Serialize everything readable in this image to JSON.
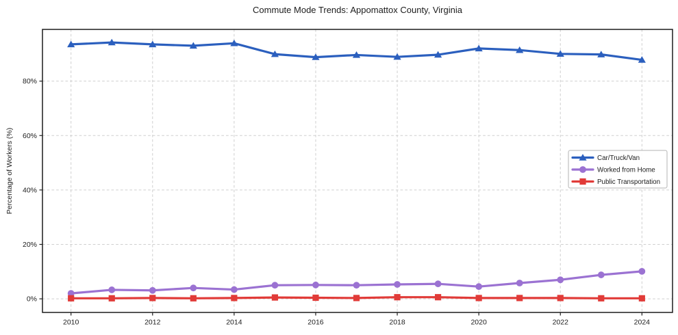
{
  "figure": {
    "title": "Commute Mode Trends: Appomattox County, Virginia",
    "y_axis_label": "Percentage of Workers (%)"
  },
  "chart_data": {
    "type": "line",
    "title": "Commute Mode Trends: Appomattox County, Virginia",
    "xlabel": "",
    "ylabel": "Percentage of Workers (%)",
    "x": [
      2010,
      2011,
      2012,
      2013,
      2014,
      2015,
      2016,
      2017,
      2018,
      2019,
      2020,
      2021,
      2022,
      2023,
      2024
    ],
    "series": [
      {
        "name": "Car/Truck/Van",
        "marker": "triangle",
        "color": "#2b5fbe",
        "values": [
          93.5,
          94.2,
          93.5,
          93.0,
          93.9,
          89.9,
          88.8,
          89.6,
          88.9,
          89.7,
          92.0,
          91.4,
          90.0,
          89.8,
          87.8
        ]
      },
      {
        "name": "Worked from Home",
        "marker": "circle",
        "color": "#9b72d2",
        "values": [
          2.0,
          3.3,
          3.1,
          4.0,
          3.4,
          5.0,
          5.1,
          5.0,
          5.3,
          5.5,
          4.5,
          5.8,
          7.0,
          8.8,
          10.1
        ]
      },
      {
        "name": "Public Transportation",
        "marker": "square",
        "color": "#e13b38",
        "values": [
          0.2,
          0.2,
          0.3,
          0.2,
          0.3,
          0.5,
          0.4,
          0.3,
          0.6,
          0.6,
          0.3,
          0.3,
          0.3,
          0.2,
          0.2
        ]
      }
    ],
    "x_ticks": {
      "values": [
        2010,
        2012,
        2014,
        2016,
        2018,
        2020,
        2022,
        2024
      ],
      "labels": [
        "2010",
        "2012",
        "2014",
        "2016",
        "2018",
        "2020",
        "2022",
        "2024"
      ]
    },
    "y_ticks": {
      "values": [
        0,
        20,
        40,
        60,
        80
      ],
      "labels": [
        "0%",
        "20%",
        "40%",
        "60%",
        "80%"
      ]
    },
    "xlim": [
      2009.3,
      2024.75
    ],
    "ylim": [
      -5,
      99
    ],
    "grid": true,
    "legend": {
      "position": "center-right",
      "entries": [
        "Car/Truck/Van",
        "Worked from Home",
        "Public Transportation"
      ]
    }
  },
  "style": {
    "grid_color": "#cfcfcf",
    "spine_color": "#1c1c1c",
    "text_color": "#1c1c1c",
    "legend_border_color": "#b3b3b3",
    "background": "#ffffff"
  }
}
